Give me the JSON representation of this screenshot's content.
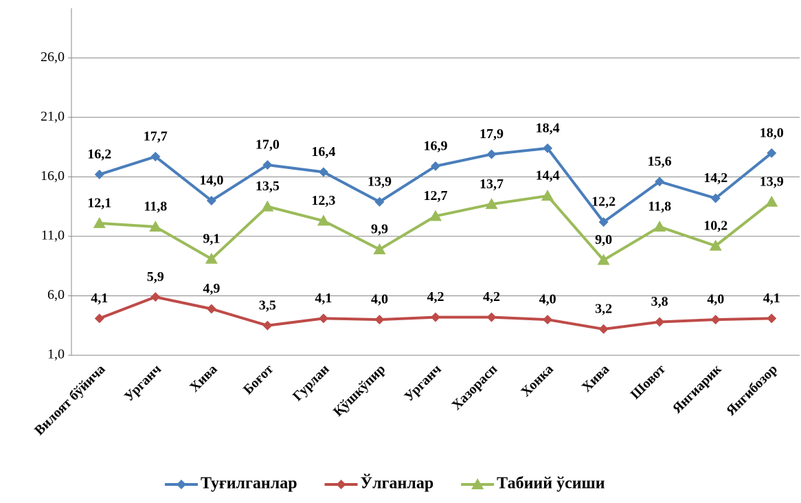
{
  "chart_data": {
    "type": "line",
    "categories": [
      "Вилоят бўйича",
      "Урганч",
      "Хива",
      "Боғот",
      "Гурлан",
      "Қўшкўпир",
      "Урганч",
      "Хазорасп",
      "Хонка",
      "Хива",
      "Шовот",
      "Янгиарик",
      "Янгибозор"
    ],
    "series": [
      {
        "name": "Туғилганлар",
        "color": "#4a7ebb",
        "marker": "diamond",
        "values": [
          16.2,
          17.7,
          14.0,
          17.0,
          16.4,
          13.9,
          16.9,
          17.9,
          18.4,
          12.2,
          15.6,
          14.2,
          18.0
        ],
        "value_labels": [
          "16,2",
          "17,7",
          "14,0",
          "17,0",
          "16,4",
          "13,9",
          "16,9",
          "17,9",
          "18,4",
          "12,2",
          "15,6",
          "14,2",
          "18,0"
        ]
      },
      {
        "name": "Ўлганлар",
        "color": "#be4b48",
        "marker": "diamond",
        "values": [
          4.1,
          5.9,
          4.9,
          3.5,
          4.1,
          4.0,
          4.2,
          4.2,
          4.0,
          3.2,
          3.8,
          4.0,
          4.1
        ],
        "value_labels": [
          "4,1",
          "5,9",
          "4,9",
          "3,5",
          "4,1",
          "4,0",
          "4,2",
          "4,2",
          "4,0",
          "3,2",
          "3,8",
          "4,0",
          "4,1"
        ]
      },
      {
        "name": "Табиий ўсиши",
        "color": "#9bbb59",
        "marker": "triangle",
        "values": [
          12.1,
          11.8,
          9.1,
          13.5,
          12.3,
          9.9,
          12.7,
          13.7,
          14.4,
          9.0,
          11.8,
          10.2,
          13.9
        ],
        "value_labels": [
          "12,1",
          "11,8",
          "9,1",
          "13,5",
          "12,3",
          "9,9",
          "12,7",
          "13,7",
          "14,4",
          "9,0",
          "11,8",
          "10,2",
          "13,9"
        ]
      }
    ],
    "ylim": [
      1,
      30
    ],
    "yticks": [
      {
        "value": 1,
        "label": "1,0"
      },
      {
        "value": 6,
        "label": "6,0"
      },
      {
        "value": 11,
        "label": "11,0"
      },
      {
        "value": 16,
        "label": "16,0"
      },
      {
        "value": 21,
        "label": "21,0"
      },
      {
        "value": 26,
        "label": "26,0"
      }
    ],
    "grid": true,
    "legend": "bottom"
  }
}
